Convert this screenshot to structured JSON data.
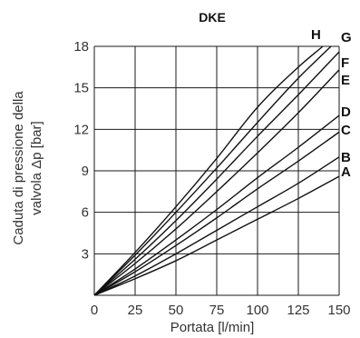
{
  "chart_data": {
    "type": "line",
    "title": "DKE",
    "xlabel": "Portata [l/min]",
    "ylabel_line1": "Caduta di pressione della",
    "ylabel_line2": "valvola Δp [bar]",
    "xlim": [
      0,
      150
    ],
    "ylim": [
      0,
      18
    ],
    "xticks": [
      0,
      25,
      50,
      75,
      100,
      125,
      150
    ],
    "yticks": [
      3,
      6,
      9,
      12,
      15,
      18
    ],
    "grid": true,
    "x": [
      0,
      25,
      50,
      75,
      100,
      125,
      150
    ],
    "series": [
      {
        "name": "A",
        "x": [
          0,
          25,
          50,
          75,
          100,
          125,
          150
        ],
        "y": [
          0,
          1.2,
          2.5,
          4.0,
          5.5,
          7.0,
          8.6
        ]
      },
      {
        "name": "B",
        "x": [
          0,
          25,
          50,
          75,
          100,
          125,
          150
        ],
        "y": [
          0,
          1.4,
          3.0,
          4.7,
          6.4,
          8.1,
          10.0
        ]
      },
      {
        "name": "C",
        "x": [
          0,
          25,
          50,
          75,
          100,
          125,
          150
        ],
        "y": [
          0,
          1.7,
          3.6,
          5.6,
          7.7,
          9.7,
          11.8
        ]
      },
      {
        "name": "D",
        "x": [
          0,
          25,
          50,
          75,
          100,
          125,
          150
        ],
        "y": [
          0,
          1.9,
          4.0,
          6.2,
          8.5,
          10.7,
          13.0
        ]
      },
      {
        "name": "E",
        "x": [
          0,
          25,
          50,
          75,
          100,
          125,
          150
        ],
        "y": [
          0,
          2.3,
          4.8,
          7.5,
          10.3,
          13.2,
          16.3
        ]
      },
      {
        "name": "F",
        "x": [
          0,
          25,
          50,
          75,
          100,
          125,
          150
        ],
        "y": [
          0,
          2.6,
          5.4,
          8.4,
          11.5,
          14.5,
          17.6
        ]
      },
      {
        "name": "G",
        "x": [
          0,
          25,
          50,
          75,
          100,
          125,
          145
        ],
        "y": [
          0,
          2.9,
          6.0,
          9.2,
          12.5,
          15.7,
          18.0
        ]
      },
      {
        "name": "H",
        "x": [
          0,
          25,
          50,
          75,
          100,
          125,
          140
        ],
        "y": [
          0,
          3.1,
          6.4,
          9.9,
          13.6,
          16.5,
          18.0
        ]
      }
    ]
  }
}
